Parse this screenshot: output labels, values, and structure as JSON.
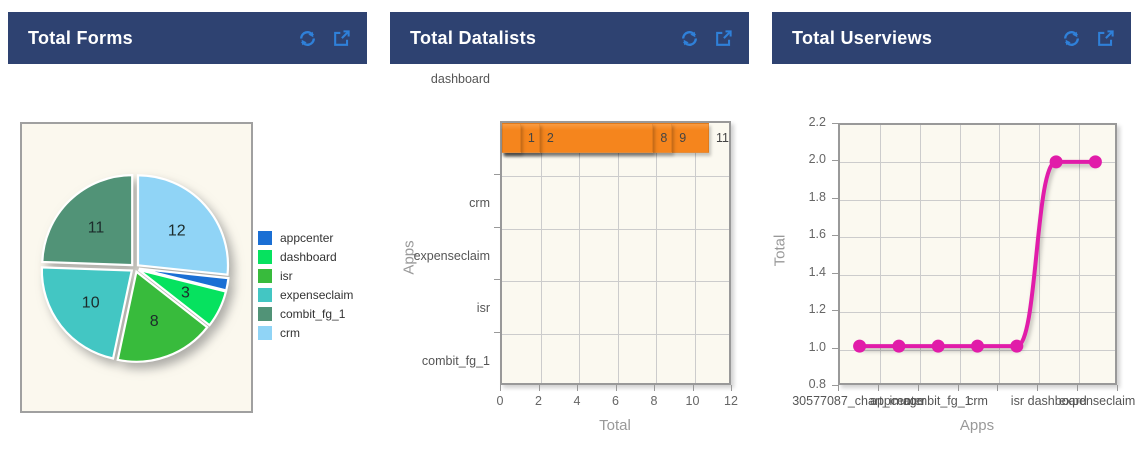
{
  "theme": {
    "header_bg": "#2e4271",
    "header_text": "#ffffff",
    "icon_color": "#2f80d9",
    "plot_bg": "#fbf9f0",
    "frame_border": "#999999",
    "grid_color": "#cccccc",
    "axis_label_color": "#999999"
  },
  "icons": {
    "refresh": "refresh-icon",
    "open_in_new": "external-link-icon"
  },
  "panels": {
    "forms": {
      "title": "Total Forms",
      "chart_data": {
        "type": "pie",
        "categories": [
          "appcenter",
          "dashboard",
          "isr",
          "expenseclaim",
          "combit_fg_1",
          "crm"
        ],
        "values": [
          1,
          3,
          8,
          10,
          11,
          12
        ],
        "colors": [
          "#1a6fd4",
          "#06e25f",
          "#38bb3c",
          "#43c6c3",
          "#519377",
          "#90d4f6"
        ],
        "slice_order": [
          5,
          0,
          1,
          2,
          3,
          4
        ],
        "start_angle_deg": 0,
        "legend_position": "right",
        "exploded": true
      }
    },
    "datalists": {
      "title": "Total Datalists",
      "chart_data": {
        "type": "bar",
        "orientation": "horizontal",
        "categories": [
          "crm",
          "expenseclaim",
          "isr",
          "combit_fg_1",
          "dashboard"
        ],
        "values": [
          11,
          9,
          8,
          2,
          1
        ],
        "xlabel": "Total",
        "ylabel": "Apps",
        "xlim": [
          0,
          12
        ],
        "xticks": [
          0,
          2,
          4,
          6,
          8,
          10,
          12
        ],
        "bar_color": "#f5851d",
        "grid": true
      }
    },
    "userviews": {
      "title": "Total Userviews",
      "chart_data": {
        "type": "line",
        "categories": [
          "30577087_chart_image",
          "appcenter",
          "combit_fg_1",
          "crm",
          "isr",
          "dashboard",
          "expenseclaim"
        ],
        "values": [
          1,
          1,
          1,
          1,
          1,
          2,
          2
        ],
        "xlabel": "Apps",
        "ylabel": "Total",
        "ylim": [
          0.8,
          2.2
        ],
        "yticks": [
          "0.8",
          "1.0",
          "1.2",
          "1.4",
          "1.6",
          "1.8",
          "2.0",
          "2.2"
        ],
        "line_color": "#e11ca9",
        "grid": true
      }
    }
  }
}
